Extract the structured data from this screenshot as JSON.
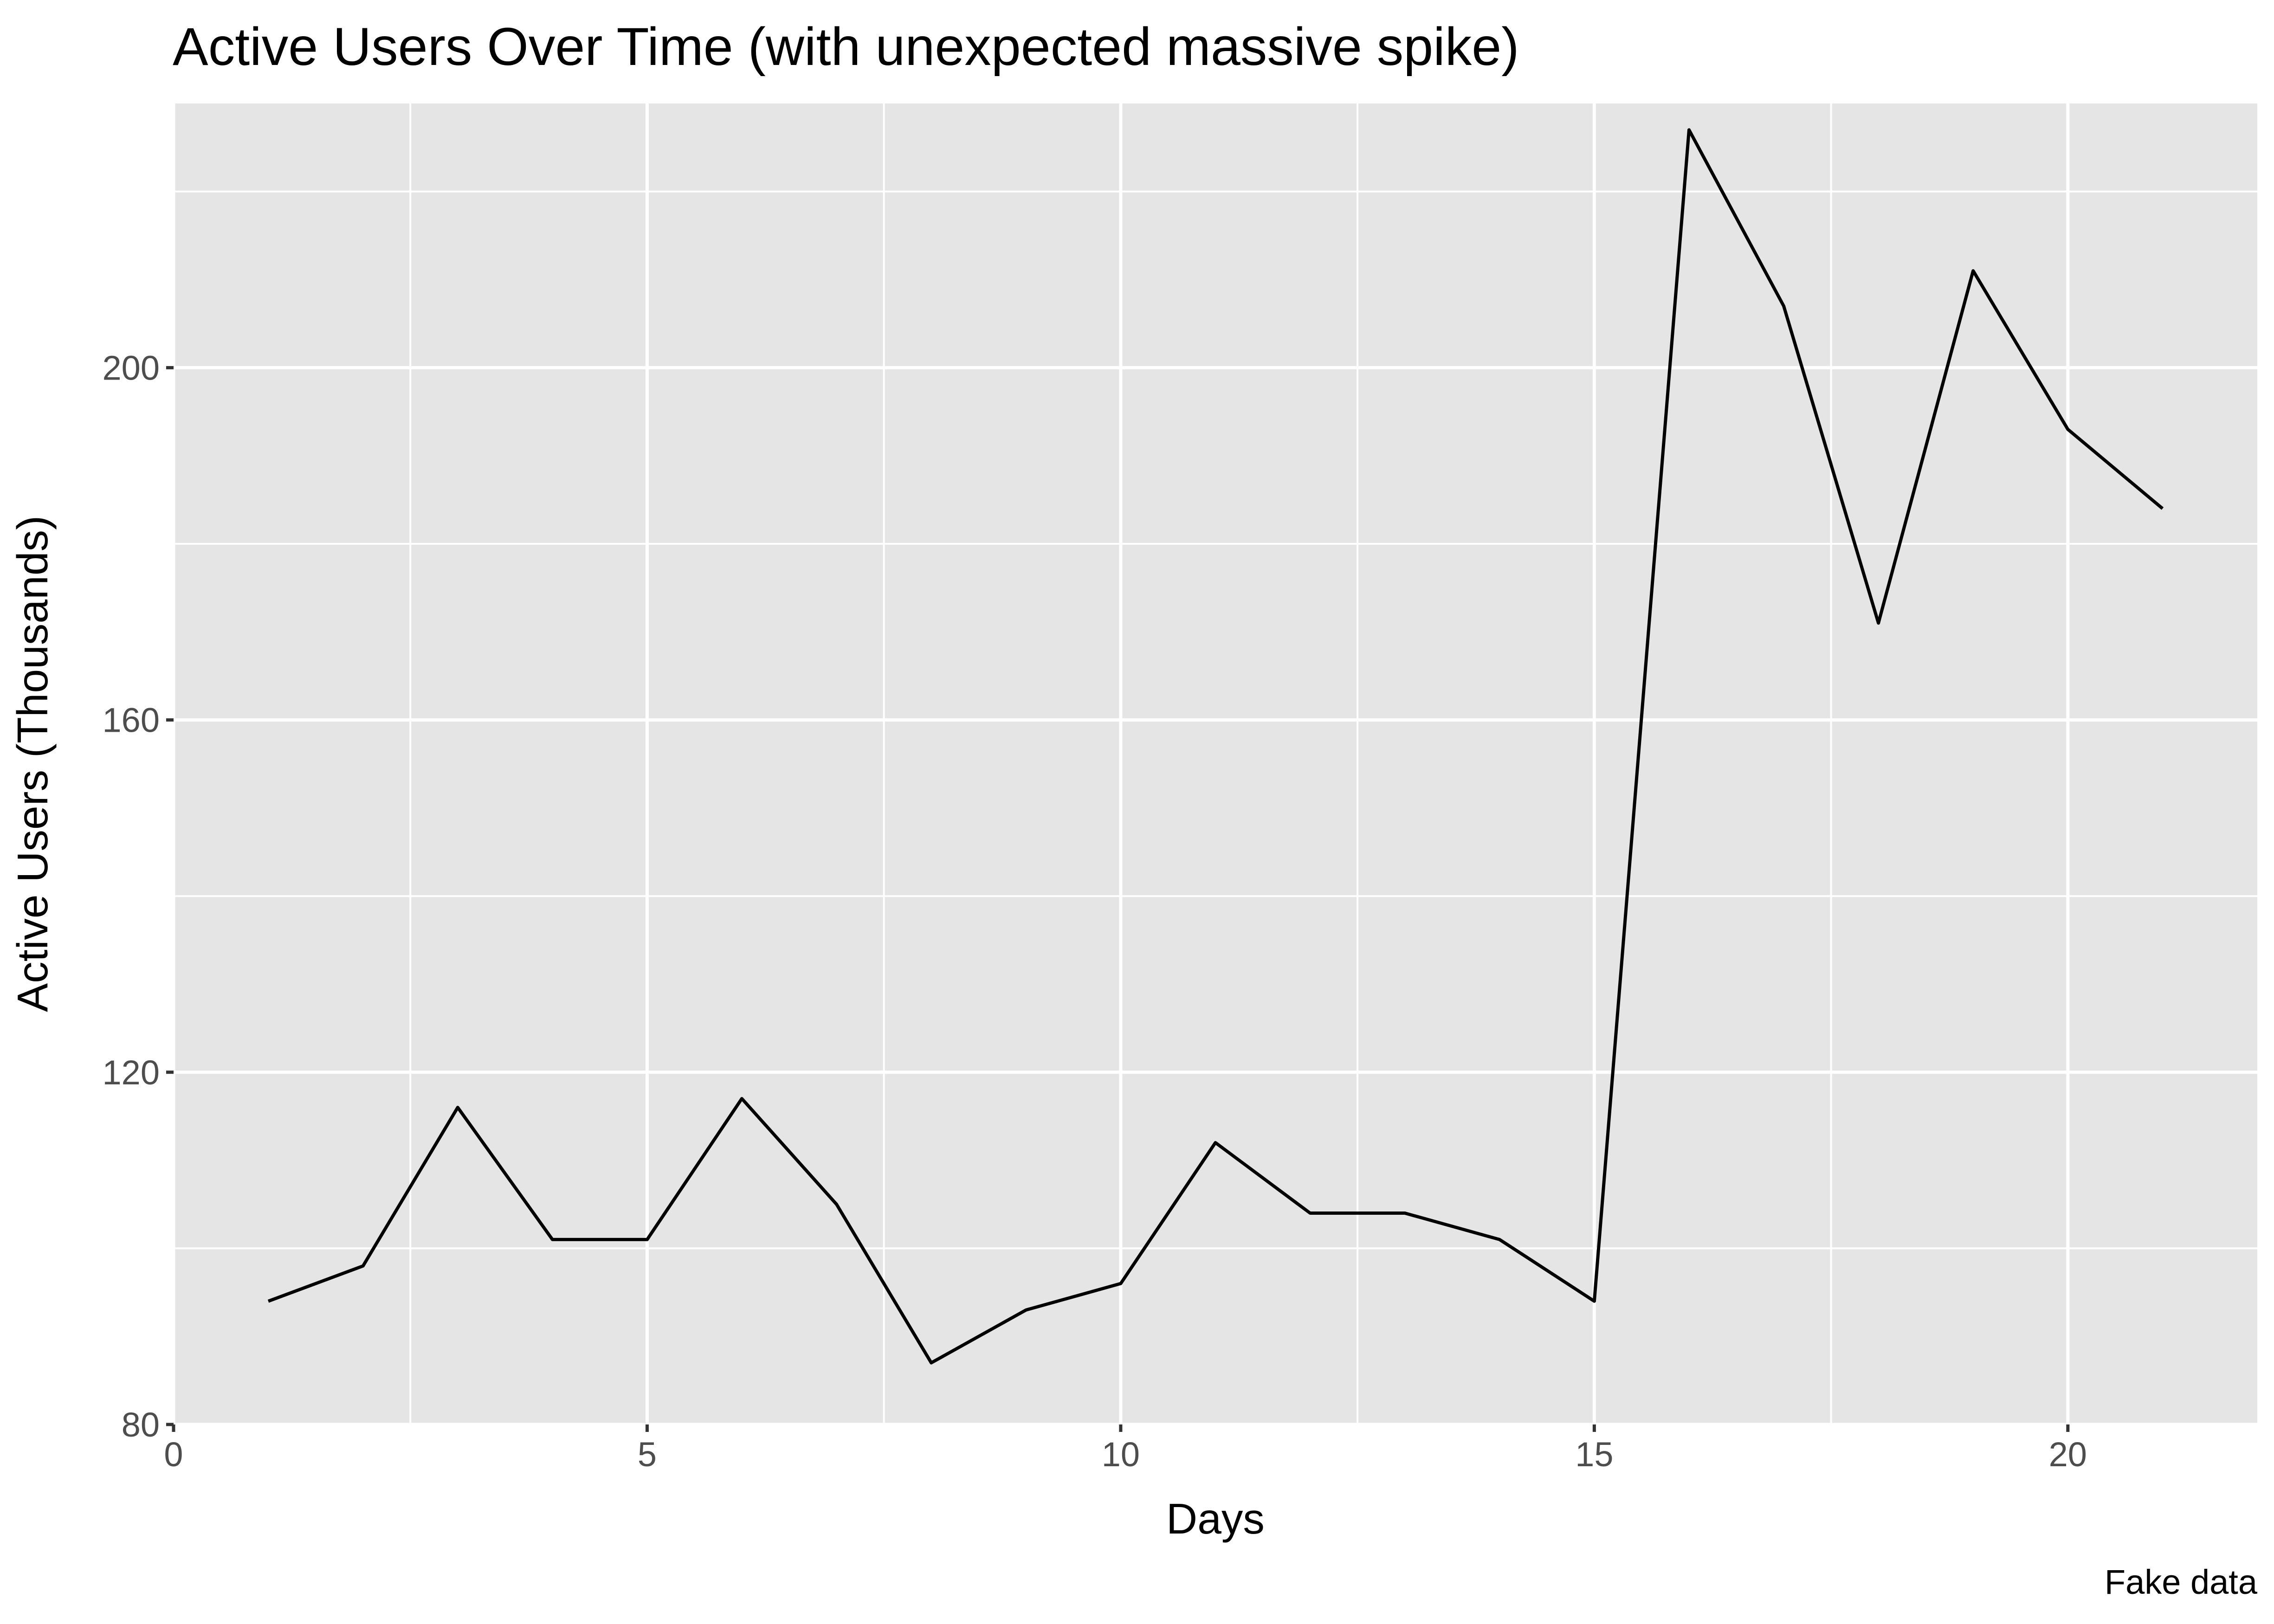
{
  "chart_data": {
    "type": "line",
    "title": "Active Users Over Time (with unexpected massive spike)",
    "xlabel": "Days",
    "ylabel": "Active Users (Thousands)",
    "caption": "Fake data",
    "xlim": [
      0,
      22
    ],
    "ylim": [
      80,
      230
    ],
    "x_ticks": [
      0,
      5,
      10,
      15,
      20
    ],
    "x_tick_labels": [
      "0",
      "5",
      "10",
      "15",
      "20"
    ],
    "x_minor_ticks": [
      2.5,
      7.5,
      12.5,
      17.5
    ],
    "y_ticks": [
      80,
      120,
      160,
      200
    ],
    "y_tick_labels": [
      "80",
      "120",
      "160",
      "200"
    ],
    "y_minor_ticks": [
      100,
      140,
      180,
      220
    ],
    "grid": true,
    "series": [
      {
        "x": [
          1,
          2,
          3,
          4,
          5,
          6,
          7,
          8,
          9,
          10,
          11,
          12,
          13,
          14,
          15,
          16,
          17,
          18,
          19,
          20,
          21
        ],
        "values": [
          94,
          98,
          116,
          101,
          101,
          117,
          105,
          87,
          93,
          96,
          112,
          104,
          104,
          101,
          94,
          227,
          207,
          171,
          211,
          193,
          184
        ]
      }
    ],
    "colors": {
      "panel_background": "#E5E5E5",
      "grid_line": "#FFFFFF",
      "series_line": "#000000",
      "tick_label": "#4D4D4D",
      "axis_tick": "#333333"
    }
  }
}
